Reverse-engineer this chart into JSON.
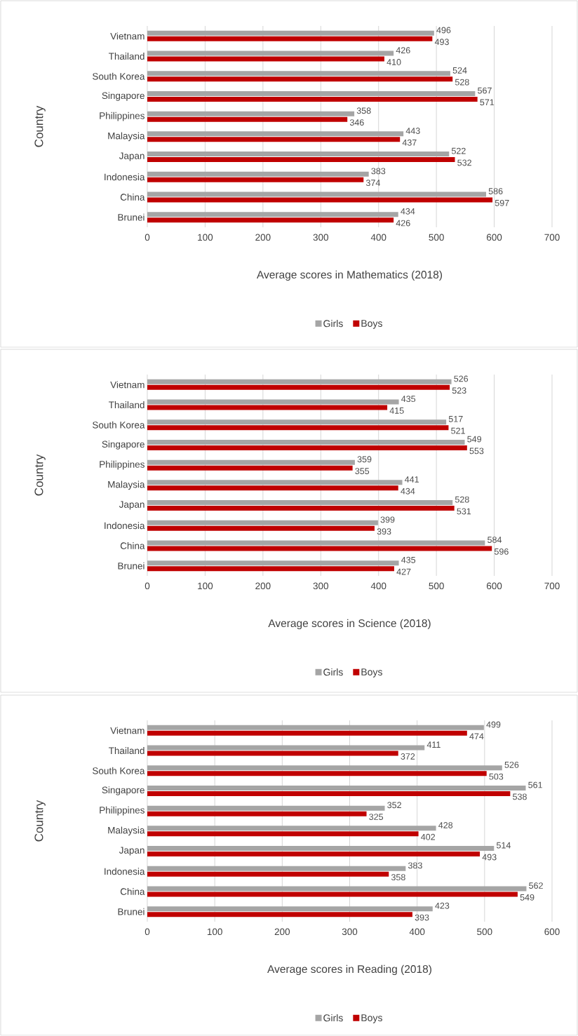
{
  "chart_data": [
    {
      "type": "bar",
      "orientation": "horizontal",
      "categories": [
        "Vietnam",
        "Thailand",
        "South Korea",
        "Singapore",
        "Philippines",
        "Malaysia",
        "Japan",
        "Indonesia",
        "China",
        "Brunei"
      ],
      "series": [
        {
          "name": "Girls",
          "color": "#a5a5a5",
          "values": [
            496,
            426,
            524,
            567,
            358,
            443,
            522,
            383,
            586,
            434
          ]
        },
        {
          "name": "Boys",
          "color": "#c00000",
          "values": [
            493,
            410,
            528,
            571,
            346,
            437,
            532,
            374,
            597,
            426
          ]
        }
      ],
      "xlim": [
        0,
        700
      ],
      "xticks": [
        0,
        100,
        200,
        300,
        400,
        500,
        600,
        700
      ],
      "xlabel": "Average scores in Mathematics (2018)",
      "ylabel": "Country",
      "grid": "x",
      "legend": "bottom",
      "data_labels": true
    },
    {
      "type": "bar",
      "orientation": "horizontal",
      "categories": [
        "Vietnam",
        "Thailand",
        "South Korea",
        "Singapore",
        "Philippines",
        "Malaysia",
        "Japan",
        "Indonesia",
        "China",
        "Brunei"
      ],
      "series": [
        {
          "name": "Girls",
          "color": "#a5a5a5",
          "values": [
            526,
            435,
            517,
            549,
            359,
            441,
            528,
            399,
            584,
            435
          ]
        },
        {
          "name": "Boys",
          "color": "#c00000",
          "values": [
            523,
            415,
            521,
            553,
            355,
            434,
            531,
            393,
            596,
            427
          ]
        }
      ],
      "xlim": [
        0,
        700
      ],
      "xticks": [
        0,
        100,
        200,
        300,
        400,
        500,
        600,
        700
      ],
      "xlabel": "Average scores in Science (2018)",
      "ylabel": "Country",
      "grid": "x",
      "legend": "bottom",
      "data_labels": true
    },
    {
      "type": "bar",
      "orientation": "horizontal",
      "categories": [
        "Vietnam",
        "Thailand",
        "South Korea",
        "Singapore",
        "Philippines",
        "Malaysia",
        "Japan",
        "Indonesia",
        "China",
        "Brunei"
      ],
      "series": [
        {
          "name": "Girls",
          "color": "#a5a5a5",
          "values": [
            499,
            411,
            526,
            561,
            352,
            428,
            514,
            383,
            562,
            423
          ]
        },
        {
          "name": "Boys",
          "color": "#c00000",
          "values": [
            474,
            372,
            503,
            538,
            325,
            402,
            493,
            358,
            549,
            393
          ]
        }
      ],
      "xlim": [
        0,
        600
      ],
      "xticks": [
        0,
        100,
        200,
        300,
        400,
        500,
        600
      ],
      "xlabel": "Average scores in Reading (2018)",
      "ylabel": "Country",
      "grid": "x",
      "legend": "bottom",
      "data_labels": true
    }
  ]
}
